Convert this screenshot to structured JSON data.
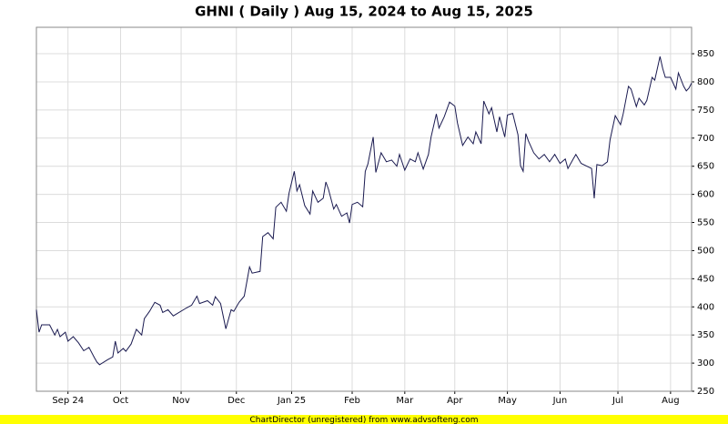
{
  "chart_data": {
    "type": "line",
    "title": "GHNI ( Daily ) Aug 15, 2024 to Aug 15, 2025",
    "footer": "ChartDirector (unregistered) from www.advsofteng.com",
    "color": "#1a1a50",
    "grid": true,
    "x": [
      0,
      1,
      2,
      5,
      7,
      8,
      9,
      11,
      12,
      14,
      16,
      18,
      20,
      22,
      23,
      24,
      27,
      29,
      30,
      31,
      33,
      34,
      36,
      38,
      40,
      41,
      43,
      45,
      47,
      48,
      50,
      52,
      57,
      59,
      61,
      62,
      65,
      67,
      68,
      70,
      72,
      74,
      75,
      77,
      79,
      81,
      82,
      85,
      86,
      88,
      90,
      91,
      93,
      95,
      96,
      98,
      99,
      100,
      102,
      104,
      105,
      107,
      109,
      110,
      111,
      113,
      114,
      116,
      118,
      119,
      120,
      122,
      124,
      125,
      126,
      128,
      129,
      131,
      133,
      135,
      137,
      138,
      140,
      142,
      144,
      145,
      147,
      149,
      150,
      152,
      153,
      155,
      157,
      159,
      160,
      162,
      164,
      166,
      167,
      169,
      170,
      172,
      173,
      175,
      176,
      178,
      179,
      181,
      183,
      184,
      185,
      186,
      187,
      189,
      191,
      193,
      195,
      197,
      199,
      201,
      202,
      204,
      205,
      207,
      211,
      212,
      213,
      215,
      217,
      218,
      220,
      222,
      223,
      225,
      226,
      228,
      229,
      231,
      232,
      234,
      235,
      236,
      237,
      238,
      239,
      241,
      243,
      244,
      246,
      247,
      248,
      249
    ],
    "values": [
      395,
      355,
      368,
      368,
      350,
      360,
      347,
      355,
      339,
      347,
      336,
      322,
      328,
      310,
      302,
      297,
      306,
      311,
      339,
      318,
      326,
      321,
      334,
      360,
      350,
      379,
      392,
      408,
      403,
      390,
      395,
      384,
      398,
      403,
      419,
      406,
      411,
      403,
      418,
      406,
      361,
      395,
      392,
      408,
      419,
      471,
      460,
      463,
      525,
      532,
      521,
      577,
      586,
      570,
      602,
      641,
      606,
      617,
      580,
      565,
      606,
      586,
      593,
      622,
      609,
      574,
      582,
      561,
      567,
      549,
      582,
      586,
      578,
      641,
      654,
      702,
      639,
      674,
      658,
      661,
      650,
      671,
      643,
      663,
      658,
      674,
      645,
      671,
      702,
      743,
      718,
      738,
      764,
      757,
      727,
      687,
      702,
      690,
      711,
      690,
      766,
      743,
      754,
      711,
      738,
      702,
      741,
      744,
      706,
      651,
      641,
      708,
      695,
      674,
      663,
      671,
      658,
      671,
      655,
      663,
      646,
      663,
      671,
      655,
      646,
      593,
      653,
      651,
      658,
      697,
      740,
      724,
      743,
      792,
      787,
      756,
      771,
      759,
      767,
      808,
      803,
      824,
      845,
      824,
      808,
      808,
      787,
      816,
      792,
      784,
      789,
      798
    ],
    "xlim": [
      0,
      249
    ],
    "xticks": [
      {
        "value": 12,
        "label": "Sep 24"
      },
      {
        "value": 32,
        "label": "Oct"
      },
      {
        "value": 55,
        "label": "Nov"
      },
      {
        "value": 76,
        "label": "Dec"
      },
      {
        "value": 97,
        "label": "Jan 25"
      },
      {
        "value": 120,
        "label": "Feb"
      },
      {
        "value": 140,
        "label": "Mar"
      },
      {
        "value": 159,
        "label": "Apr"
      },
      {
        "value": 179,
        "label": "May"
      },
      {
        "value": 199,
        "label": "Jun"
      },
      {
        "value": 221,
        "label": "Jul"
      },
      {
        "value": 241,
        "label": "Aug"
      }
    ],
    "ylim": [
      250,
      897
    ],
    "yticks": [
      250,
      300,
      350,
      400,
      450,
      500,
      550,
      600,
      650,
      700,
      750,
      800,
      850
    ]
  }
}
